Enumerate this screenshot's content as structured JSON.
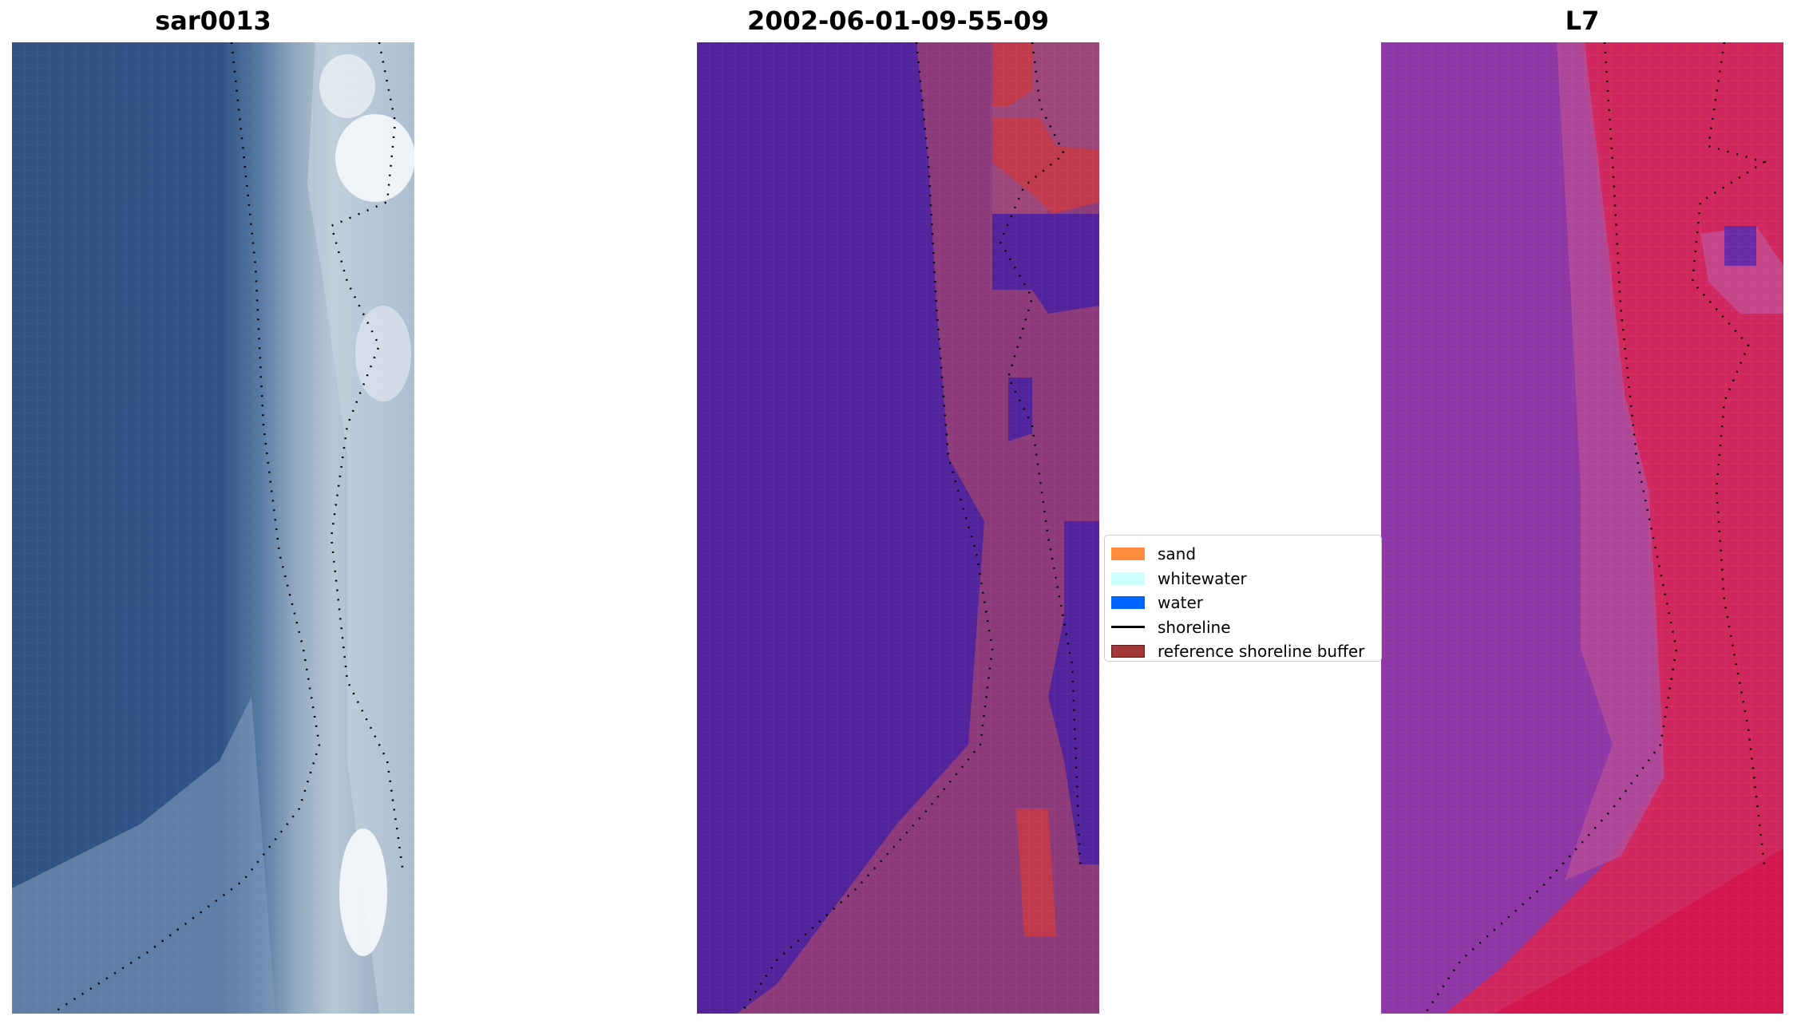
{
  "panels": [
    {
      "title": "sar0013",
      "icon": "rgb-satellite-image"
    },
    {
      "title": "2002-06-01-09-55-09",
      "icon": "classified-image"
    },
    {
      "title": "L7",
      "icon": "false-color-index-image"
    }
  ],
  "legend": {
    "items": [
      {
        "label": "sand",
        "color": "#ff8c3c",
        "kind": "patch"
      },
      {
        "label": "whitewater",
        "color": "#ccffff",
        "kind": "patch"
      },
      {
        "label": "water",
        "color": "#0064ff",
        "kind": "patch"
      },
      {
        "label": "shoreline",
        "color": "#000000",
        "kind": "line"
      },
      {
        "label": "reference shoreline buffer",
        "color": "#a33636",
        "border": "#5a1a1a",
        "kind": "patch"
      }
    ]
  },
  "colors": {
    "rgb_water": "#2f5386",
    "rgb_shore": "#7b98b9",
    "rgb_foam": "#eaf1f6",
    "class_water": "#52239b",
    "class_land": "#8c3a7a",
    "class_buffer": "#c03a4d",
    "index_water": "#8f37a6",
    "index_land": "#d0285e"
  }
}
